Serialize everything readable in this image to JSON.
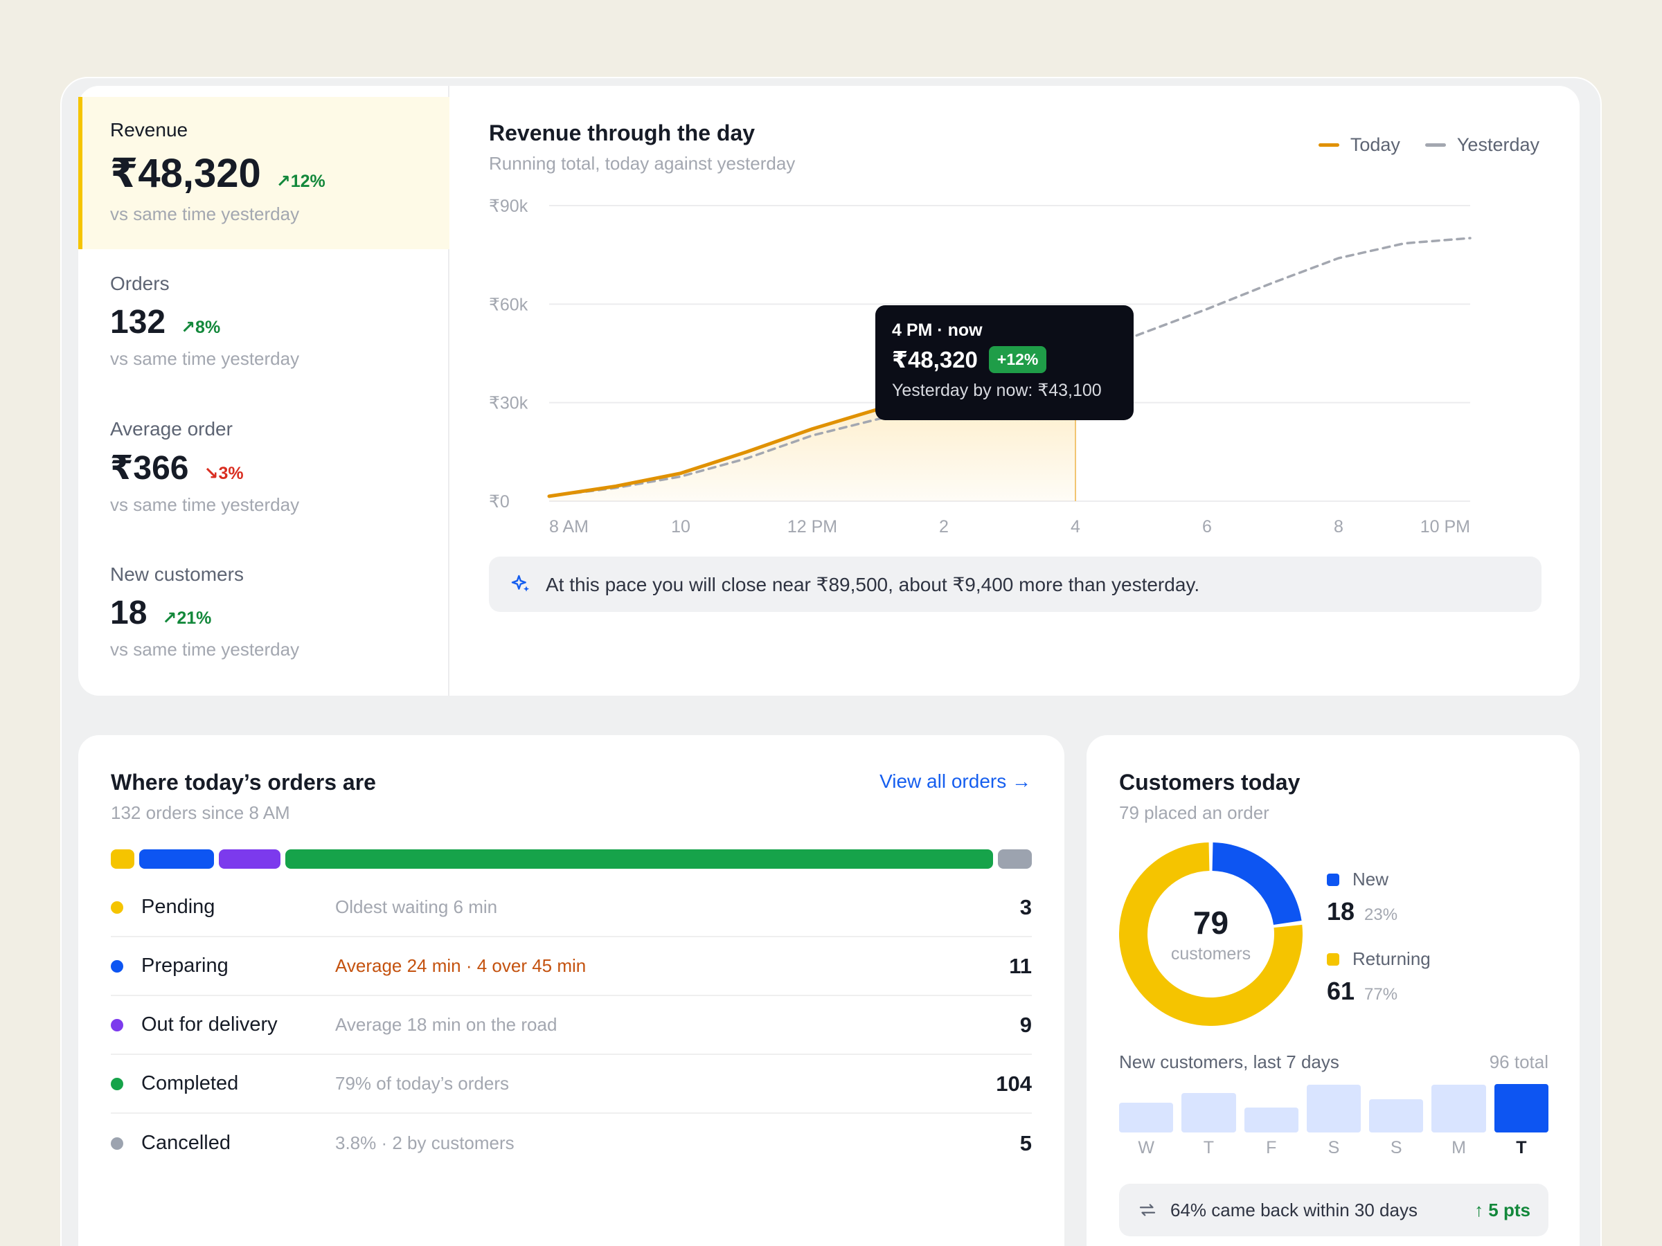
{
  "kpis": [
    {
      "label": "Revenue",
      "value": "₹48,320",
      "delta": "12%",
      "direction": "up",
      "note": "vs same time yesterday"
    },
    {
      "label": "Orders",
      "value": "132",
      "delta": "8%",
      "direction": "up",
      "note": "vs same time yesterday"
    },
    {
      "label": "Average order",
      "value": "₹366",
      "delta": "3%",
      "direction": "down",
      "note": "vs same time yesterday"
    },
    {
      "label": "New customers",
      "value": "18",
      "delta": "21%",
      "direction": "up",
      "note": "vs same time yesterday"
    }
  ],
  "revenue_chart": {
    "title": "Revenue through the day",
    "subtitle": "Running total, today against yesterday",
    "legend": {
      "today": "Today",
      "yesterday": "Yesterday"
    },
    "tooltip": {
      "time": "4 PM · now",
      "value": "₹48,320",
      "badge": "+12%",
      "yesterday": "Yesterday by now: ₹43,100"
    },
    "insight": "At this pace you will close near ₹89,500, about ₹9,400 more than yesterday."
  },
  "chart_data": {
    "type": "line",
    "y_tick_labels": [
      "₹0",
      "₹30k",
      "₹60k",
      "₹90k"
    ],
    "y_ticks": [
      0,
      30000,
      60000,
      90000
    ],
    "ylim": [
      0,
      90000
    ],
    "x_tick_labels": [
      "8 AM",
      "10",
      "12 PM",
      "2",
      "4",
      "6",
      "8",
      "10 PM"
    ],
    "x_ticks": [
      8,
      10,
      12,
      14,
      16,
      18,
      20,
      22
    ],
    "xlim": [
      8,
      22
    ],
    "series": [
      {
        "name": "Today",
        "color": "#e09100",
        "x": [
          8,
          9,
          10,
          11,
          12,
          13,
          14,
          15,
          16
        ],
        "y": [
          1500,
          4500,
          8500,
          15000,
          22000,
          28000,
          34000,
          41500,
          48320
        ]
      },
      {
        "name": "Yesterday",
        "color": "#a3a7b0",
        "dashed": true,
        "x": [
          8,
          9,
          10,
          11,
          12,
          13,
          14,
          15,
          16,
          17,
          18,
          19,
          20,
          21,
          22
        ],
        "y": [
          1500,
          4000,
          7500,
          13000,
          20000,
          25000,
          30000,
          36500,
          43100,
          51000,
          58500,
          66500,
          74000,
          78500,
          80100
        ]
      }
    ],
    "grid": true,
    "legend_position": "top-right"
  },
  "orders": {
    "title": "Where today’s orders are",
    "subtitle": "132 orders since 8 AM",
    "view_all": "View all orders →",
    "statuses": [
      {
        "name": "Pending",
        "desc": "Oldest waiting 6 min",
        "count": "3",
        "value": 3,
        "color": "#f5c400",
        "warn": false
      },
      {
        "name": "Preparing",
        "desc": "Average 24 min · 4 over 45 min",
        "count": "11",
        "value": 11,
        "color": "#0d55f2",
        "warn": true
      },
      {
        "name": "Out for delivery",
        "desc": "Average 18 min on the road",
        "count": "9",
        "value": 9,
        "color": "#7c3aed",
        "warn": false
      },
      {
        "name": "Completed",
        "desc": "79% of today’s orders",
        "count": "104",
        "value": 104,
        "color": "#16a34a",
        "warn": false
      },
      {
        "name": "Cancelled",
        "desc": "3.8% · 2 by customers",
        "count": "5",
        "value": 5,
        "color": "#9ca3af",
        "warn": false
      }
    ]
  },
  "customers": {
    "title": "Customers today",
    "subtitle": "79 placed an order",
    "total": "79",
    "total_label": "customers",
    "segments": [
      {
        "label": "New",
        "value": "18",
        "pct": "23%",
        "share": 0.23,
        "color": "#0d55f2"
      },
      {
        "label": "Returning",
        "value": "61",
        "pct": "77%",
        "share": 0.77,
        "color": "#f5c400"
      }
    ],
    "week": {
      "title": "New customers, last 7 days",
      "total": "96 total",
      "days": [
        "W",
        "T",
        "F",
        "S",
        "S",
        "M",
        "T"
      ],
      "levels": [
        0.62,
        0.82,
        0.52,
        0.98,
        0.68,
        0.98,
        1.0
      ],
      "current_index": 6
    },
    "return": {
      "text": "64% came back within 30 days",
      "change": "↑ 5 pts"
    }
  }
}
